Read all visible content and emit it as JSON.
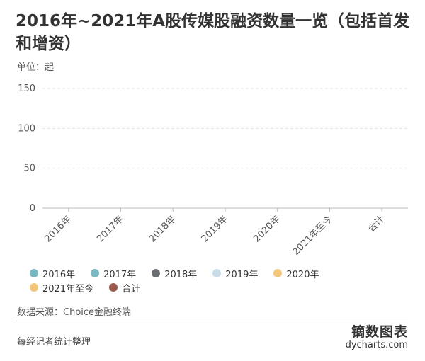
{
  "title": "2016年~2021年A股传媒股融资数量一览（包括首发和增资）",
  "unit_label": "单位：起",
  "source": "数据来源：Choice金融终端",
  "footer_note": "每经记者统计整理",
  "brand": {
    "name": "镝数图表",
    "url": "dycharts.com"
  },
  "legend": [
    {
      "label": "2016年",
      "color": "#7ab8c2"
    },
    {
      "label": "2017年",
      "color": "#7ab8c2"
    },
    {
      "label": "2018年",
      "color": "#6a6e72"
    },
    {
      "label": "2019年",
      "color": "#c8dce8"
    },
    {
      "label": "2020年",
      "color": "#f2c77c"
    },
    {
      "label": "2021年至今",
      "color": "#f2c77c"
    },
    {
      "label": "合计",
      "color": "#9a5a4e"
    }
  ],
  "chart_data": {
    "type": "bar",
    "title": "2016年~2021年A股传媒股融资数量一览（包括首发和增资）",
    "ylabel": "单位：起",
    "xlabel": "",
    "categories": [
      "2016年",
      "2017年",
      "2018年",
      "2019年",
      "2020年",
      "2021年至今",
      "合计"
    ],
    "values": [
      null,
      null,
      null,
      null,
      null,
      null,
      null
    ],
    "yticks": [
      0,
      50,
      100,
      150
    ],
    "ylim": [
      0,
      150
    ],
    "grid": true
  }
}
